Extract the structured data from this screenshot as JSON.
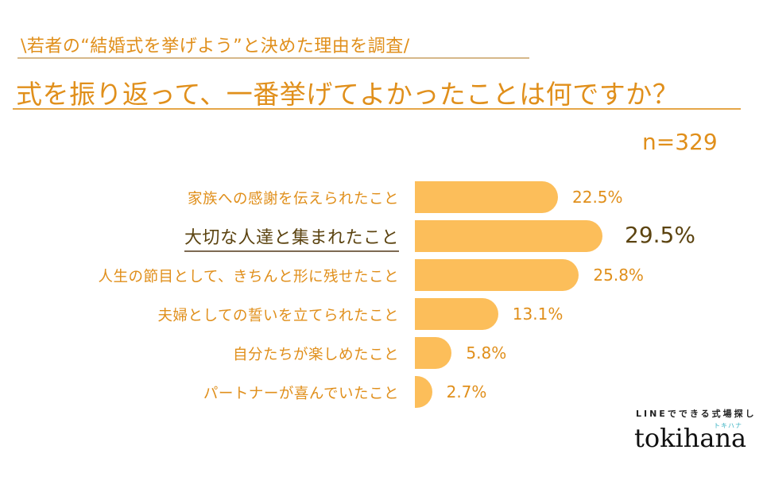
{
  "header": {
    "subtitle": "\\若者の“結婚式を挙げよう”と決めた理由を調査/",
    "title": "式を振り返って、一番挙げてよかったことは何ですか？",
    "sample_size": "n=329"
  },
  "bars": [
    {
      "label": "家族への感謝を伝えられたこと",
      "value": 22.5,
      "value_text": "22.5%",
      "highlight": false
    },
    {
      "label": "大切な人達と集まれたこと",
      "value": 29.5,
      "value_text": "29.5%",
      "highlight": true
    },
    {
      "label": "人生の節目として、きちんと形に残せたこと",
      "value": 25.8,
      "value_text": "25.8%",
      "highlight": false
    },
    {
      "label": "夫婦としての誓いを立てられたこと",
      "value": 13.1,
      "value_text": "13.1%",
      "highlight": false
    },
    {
      "label": "自分たちが楽しめたこと",
      "value": 5.8,
      "value_text": "5.8%",
      "highlight": false
    },
    {
      "label": "パートナーが喜んでいたこと",
      "value": 2.7,
      "value_text": "2.7%",
      "highlight": false
    }
  ],
  "logo": {
    "tagline": "LINEでできる式場探し",
    "kana": "トキハナ",
    "wordmark": "tokihana"
  },
  "colors": {
    "accent": "#e08f1b",
    "bar": "#fcbe5a",
    "highlight_text": "#5c4411"
  },
  "chart_data": {
    "type": "bar",
    "orientation": "horizontal",
    "title": "式を振り返って、一番挙げてよかったことは何ですか？",
    "subtitle": "\\若者の“結婚式を挙げよう”と決めた理由を調査/",
    "annotation": "n=329",
    "categories": [
      "家族への感謝を伝えられたこと",
      "大切な人達と集まれたこと",
      "人生の節目として、きちんと形に残せたこと",
      "夫婦としての誓いを立てられたこと",
      "自分たちが楽しめたこと",
      "パートナーが喜んでいたこと"
    ],
    "values": [
      22.5,
      29.5,
      25.8,
      13.1,
      5.8,
      2.7
    ],
    "unit": "%",
    "xlabel": "",
    "ylabel": "",
    "grid": false,
    "legend": "none",
    "highlighted_category": "大切な人達と集まれたこと"
  }
}
